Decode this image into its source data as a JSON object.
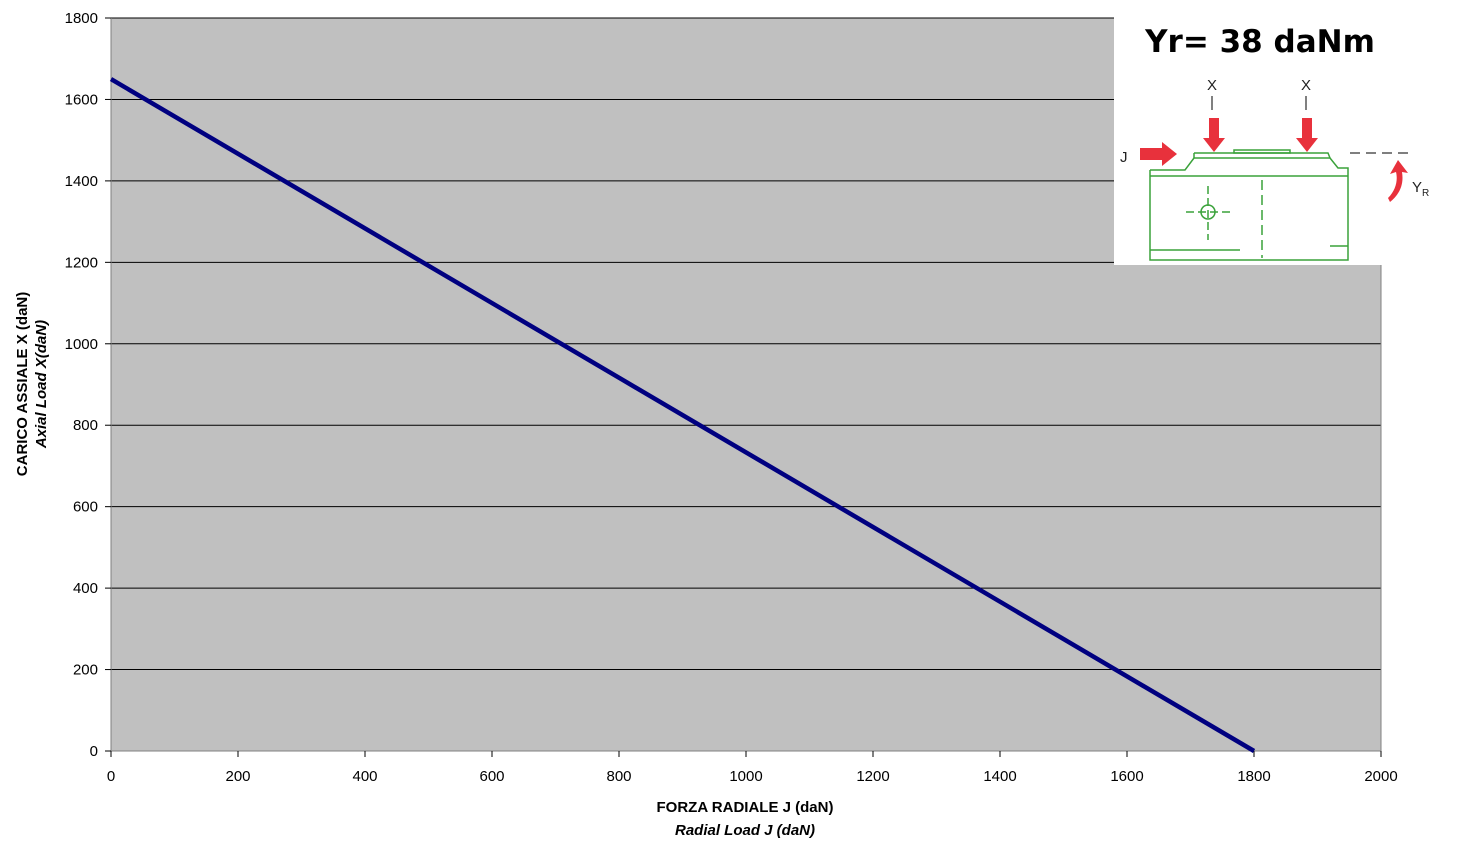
{
  "chart_data": {
    "type": "line",
    "xlabel": "FORZA RADIALE J (daN)",
    "xlabel_sub": "Radial Load J (daN)",
    "ylabel": "CARICO ASSIALE X (daN)",
    "ylabel_sub": "Axial Load X(daN)",
    "xlim": [
      0,
      2000
    ],
    "ylim": [
      0,
      1800
    ],
    "xticks": [
      0,
      200,
      400,
      600,
      800,
      1000,
      1200,
      1400,
      1600,
      1800,
      2000
    ],
    "yticks": [
      0,
      200,
      400,
      600,
      800,
      1000,
      1200,
      1400,
      1600,
      1800
    ],
    "grid": "horizontal",
    "plot_background": "#c0c0c0",
    "series": [
      {
        "color": "#000080",
        "x": [
          0,
          1800
        ],
        "y": [
          1650,
          0
        ]
      }
    ]
  },
  "inset": {
    "title": "Yr= 38 daNm",
    "label_x_1": "X",
    "label_x_2": "X",
    "label_j": "J",
    "label_y": "Y",
    "label_y_sub": "R",
    "arrow_color": "#e8313c",
    "drawing_color": "#3aa23a"
  }
}
